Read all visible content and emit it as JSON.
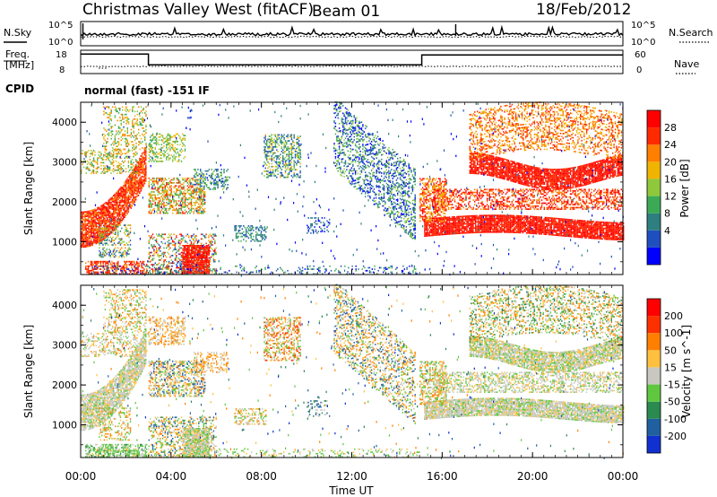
{
  "header": {
    "station": "Christmas Valley West (fitACF)",
    "beam": "Beam 01",
    "date": "18/Feb/2012"
  },
  "chart_data": [
    {
      "type": "line",
      "panel": "noise",
      "left_label": "N.Sky",
      "right_label": "N.Search",
      "left_ticks": [
        "10^5",
        "10^0"
      ],
      "right_ticks": [
        "10^5",
        "10^0"
      ]
    },
    {
      "type": "line",
      "panel": "frequency",
      "left_label_line1": "Freq.",
      "left_label_line2": "[MHz]",
      "right_label": "Nave",
      "left_ticks": [
        "18",
        "8"
      ],
      "right_ticks": [
        "60",
        "0"
      ],
      "freq_steps": [
        [
          0,
          17
        ],
        [
          3.0,
          17
        ],
        [
          3.0,
          11.5
        ],
        [
          15.1,
          11.5
        ],
        [
          15.1,
          16.5
        ],
        [
          24,
          16.5
        ]
      ],
      "freq_ylim": [
        8,
        18
      ]
    },
    {
      "type": "text",
      "panel": "cpid",
      "label": "CPID",
      "mode": "normal (fast) -151 IF"
    },
    {
      "type": "heatmap",
      "panel": "power",
      "ylabel": "Slant Range [km]",
      "colorbar_label": "Power [dB]",
      "ylim": [
        180,
        4500
      ],
      "yticks": [
        1000,
        2000,
        3000,
        4000
      ],
      "colorbar_ticks": [
        "28",
        "24",
        "20",
        "16",
        "12",
        "8",
        "4"
      ],
      "colors": [
        "#0000ff",
        "#1f4fbf",
        "#2e7f7f",
        "#3caa55",
        "#8fc83c",
        "#f0b400",
        "#ff7f00",
        "#ff2a00",
        "#ff0000"
      ]
    },
    {
      "type": "heatmap",
      "panel": "velocity",
      "ylabel": "Slant Range [km]",
      "colorbar_label": "Velocity [m s^-1]",
      "ylim": [
        180,
        4500
      ],
      "yticks": [
        1000,
        2000,
        3000,
        4000
      ],
      "colorbar_ticks": [
        "200",
        "100",
        "50",
        "15",
        "-15",
        "-50",
        "-100",
        "-200"
      ],
      "colors": [
        "#1030d0",
        "#2060a0",
        "#2a8a50",
        "#60c840",
        "#c8c8c0",
        "#ffc040",
        "#ff8000",
        "#ff3000",
        "#ff0000"
      ]
    }
  ],
  "xaxis": {
    "xlabel": "Time UT",
    "xlim": [
      0,
      24
    ],
    "ticks": [
      0,
      4,
      8,
      12,
      16,
      20,
      24
    ],
    "tick_labels": [
      "00:00",
      "04:00",
      "08:00",
      "12:00",
      "16:00",
      "20:00",
      "00:00"
    ]
  }
}
